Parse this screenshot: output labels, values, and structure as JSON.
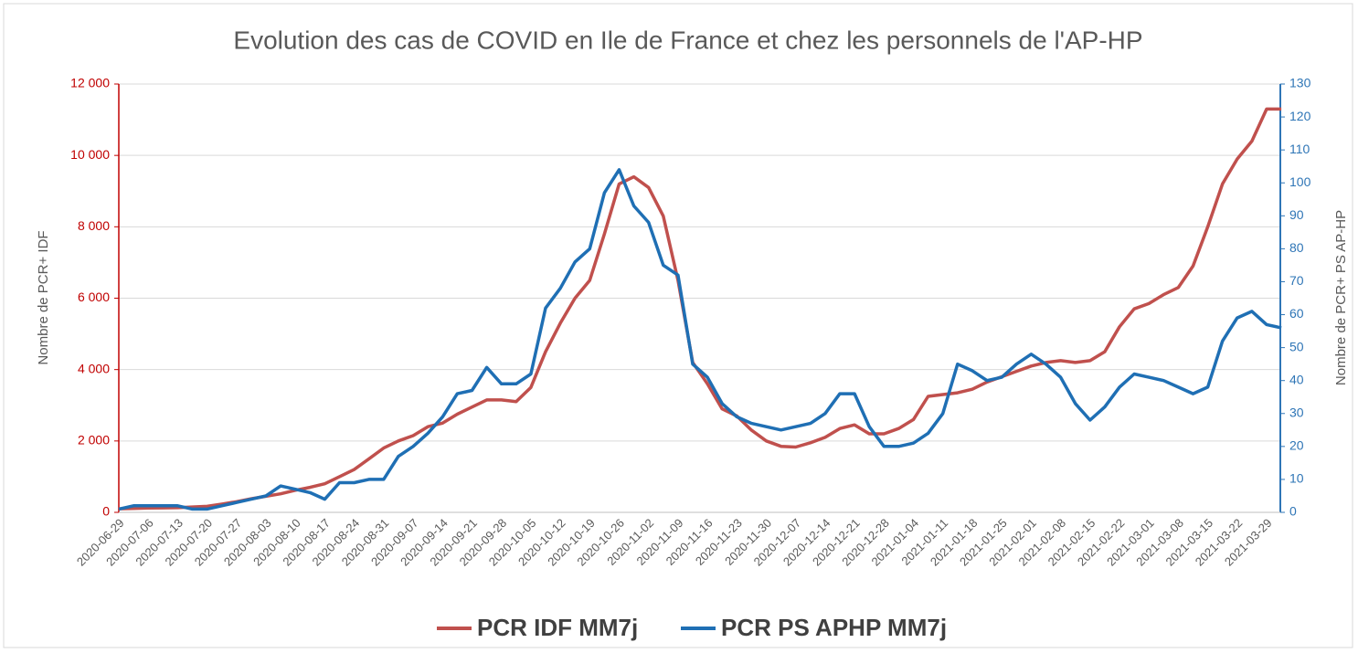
{
  "chart_data": {
    "type": "line",
    "title": "Evolution des cas de COVID en Ile de France et chez les personnels de l'AP-HP",
    "y_label": "Nombre de PCR+ IDF",
    "y2_label": "Nombre de PCR+ PS AP-HP",
    "categories": [
      "2020-06-29",
      null,
      "2020-07-06",
      null,
      "2020-07-13",
      null,
      "2020-07-20",
      null,
      "2020-07-27",
      null,
      "2020-08-03",
      null,
      "2020-08-10",
      null,
      "2020-08-17",
      null,
      "2020-08-24",
      null,
      "2020-08-31",
      null,
      "2020-09-07",
      null,
      "2020-09-14",
      null,
      "2020-09-21",
      null,
      "2020-09-28",
      null,
      "2020-10-05",
      null,
      "2020-10-12",
      null,
      "2020-10-19",
      null,
      "2020-10-26",
      null,
      "2020-11-02",
      null,
      "2020-11-09",
      null,
      "2020-11-16",
      null,
      "2020-11-23",
      null,
      "2020-11-30",
      null,
      "2020-12-07",
      null,
      "2020-12-14",
      null,
      "2020-12-21",
      null,
      "2020-12-28",
      null,
      "2021-01-04",
      null,
      "2021-01-11",
      null,
      "2021-01-18",
      null,
      "2021-01-25",
      null,
      "2021-02-01",
      null,
      "2021-02-08",
      null,
      "2021-02-15",
      null,
      "2021-02-22",
      null,
      "2021-03-01",
      null,
      "2021-03-08",
      null,
      "2021-03-15",
      null,
      "2021-03-22",
      null,
      "2021-03-29",
      null
    ],
    "series": [
      {
        "name": "PCR IDF MM7j",
        "color": "#c0504d",
        "values": [
          100,
          110,
          120,
          125,
          130,
          150,
          170,
          230,
          300,
          380,
          450,
          520,
          620,
          700,
          800,
          1000,
          1200,
          1500,
          1800,
          2000,
          2150,
          2400,
          2500,
          2750,
          2950,
          3150,
          3150,
          3100,
          3500,
          4500,
          5300,
          6000,
          6500,
          7800,
          9200,
          9400,
          9100,
          8300,
          6500,
          4200,
          3600,
          2900,
          2700,
          2300,
          2000,
          1850,
          1830,
          1950,
          2100,
          2350,
          2450,
          2200,
          2200,
          2350,
          2600,
          3250,
          3300,
          3350,
          3450,
          3650,
          3800,
          3950,
          4100,
          4200,
          4250,
          4200,
          4250,
          4500,
          5200,
          5700,
          5850,
          6100,
          6300,
          6900,
          8000,
          9200,
          9900,
          10400,
          11300,
          11300
        ]
      },
      {
        "name": "PCR PS APHP MM7j",
        "color": "#1f6fb4",
        "axis": "y2",
        "values": [
          1,
          2,
          2,
          2,
          2,
          1,
          1,
          2,
          3,
          4,
          5,
          8,
          7,
          6,
          4,
          9,
          9,
          10,
          10,
          17,
          20,
          24,
          29,
          36,
          37,
          44,
          39,
          39,
          42,
          62,
          68,
          76,
          80,
          97,
          104,
          93,
          88,
          75,
          72,
          45,
          41,
          33,
          29,
          27,
          26,
          25,
          26,
          27,
          30,
          36,
          36,
          26,
          20,
          20,
          21,
          24,
          30,
          45,
          43,
          40,
          41,
          45,
          48,
          45,
          41,
          33,
          28,
          32,
          38,
          42,
          41,
          40,
          38,
          36,
          38,
          52,
          59,
          61,
          57,
          56
        ]
      }
    ],
    "ylim": [
      0,
      12000
    ],
    "yticks": [
      {
        "value": 0,
        "label": "0"
      },
      {
        "value": 2000,
        "label": "2 000"
      },
      {
        "value": 4000,
        "label": "4 000"
      },
      {
        "value": 6000,
        "label": "6 000"
      },
      {
        "value": 8000,
        "label": "8 000"
      },
      {
        "value": 10000,
        "label": "10 000"
      },
      {
        "value": 12000,
        "label": "12 000"
      }
    ],
    "y2lim": [
      0,
      130
    ],
    "y2ticks": [
      0,
      10,
      20,
      30,
      40,
      50,
      60,
      70,
      80,
      90,
      100,
      110,
      120,
      130
    ],
    "grid": true,
    "y_color": "#c00000",
    "y2_color": "#2e75b6",
    "legend": "bottom"
  }
}
